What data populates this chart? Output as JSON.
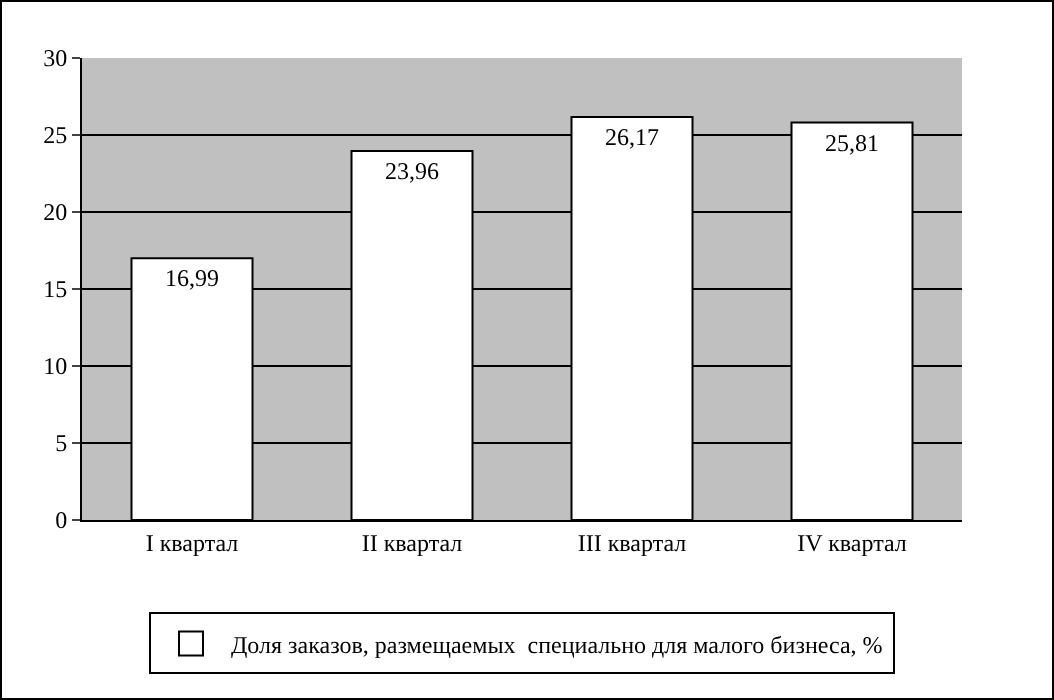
{
  "chart_data": {
    "type": "bar",
    "categories": [
      "I квартал",
      "II квартал",
      "III квартал",
      "IV квартал"
    ],
    "series": [
      {
        "name": "Доля заказов, размещаемых  специально для малого бизнеса, %",
        "color": "#ffffff",
        "values": [
          16.99,
          23.96,
          26.17,
          25.81
        ],
        "value_labels": [
          "16,99",
          "23,96",
          "26,17",
          "25,81"
        ]
      }
    ],
    "ylim": [
      0,
      30
    ],
    "yticks": [
      0,
      5,
      10,
      15,
      20,
      25,
      30
    ],
    "grid": "y",
    "legend": "bottom"
  }
}
